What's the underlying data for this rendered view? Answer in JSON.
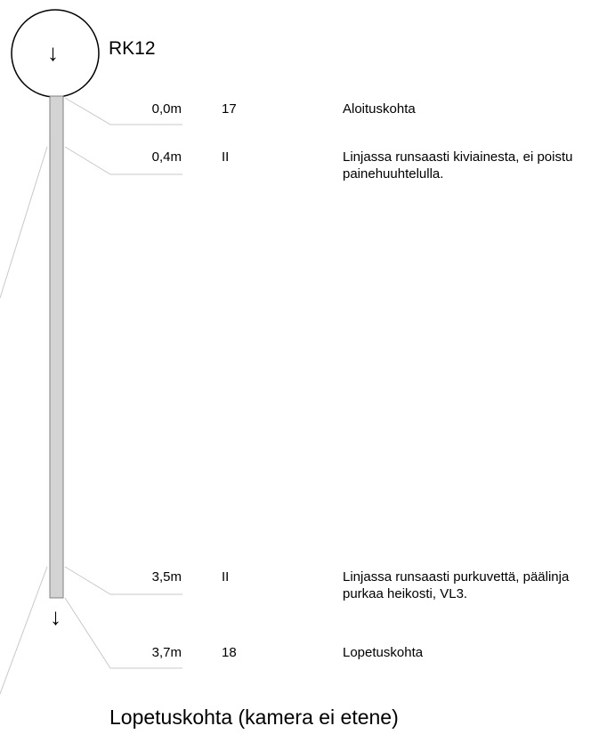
{
  "well": {
    "id": "RK12",
    "direction_symbol": "↓"
  },
  "observations": [
    {
      "depth": "0,0m",
      "code": "17",
      "description": "Aloituskohta"
    },
    {
      "depth": "0,4m",
      "code": "II",
      "description": "Linjassa runsaasti kiviainesta, ei poistu painehuuhtelulla."
    },
    {
      "depth": "3,5m",
      "code": "II",
      "description": "Linjassa runsaasti purkuvettä, päälinja purkaa heikosti, VL3."
    },
    {
      "depth": "3,7m",
      "code": "18",
      "description": "Lopetuskohta"
    }
  ],
  "end_symbol": "↓",
  "footer": "Lopetuskohta (kamera ei etene)",
  "colors": {
    "pipe_fill": "#d3d3d3",
    "pipe_stroke": "#808080",
    "leader_line": "#c8c8c8",
    "outline": "#000000"
  }
}
